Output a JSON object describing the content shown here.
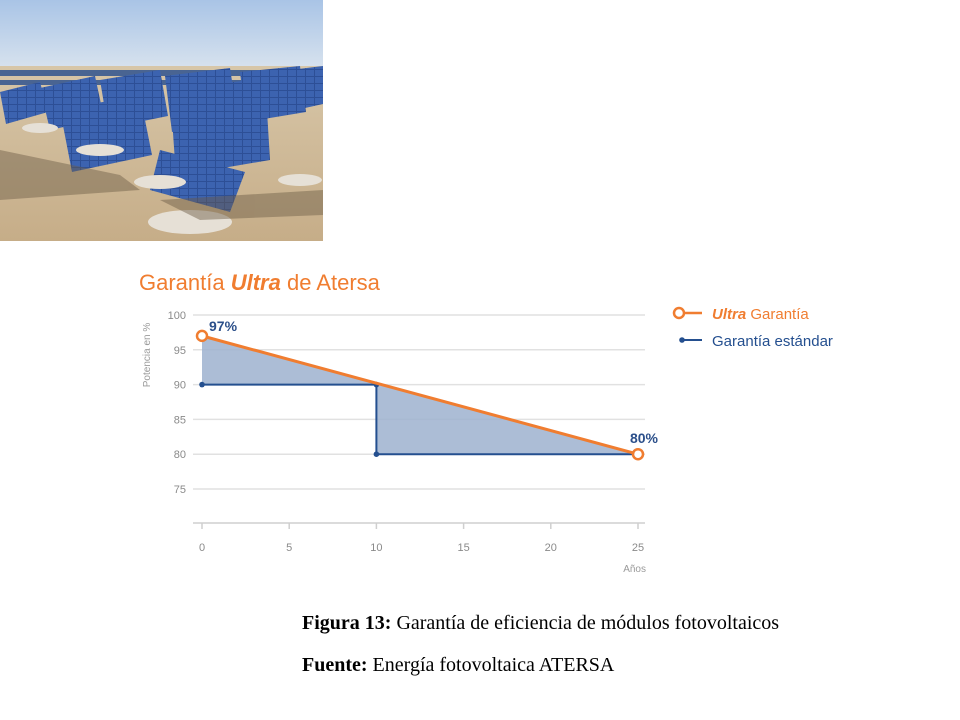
{
  "photo": {
    "subject": "solar-panel-field-photo"
  },
  "chart_data": {
    "type": "area",
    "title_parts": [
      "Garantía ",
      "Ultra",
      " de Atersa"
    ],
    "xlabel": "Años",
    "ylabel": "Potencia en %",
    "xlim": [
      0,
      25
    ],
    "ylim": [
      70,
      100
    ],
    "xticks": [
      0,
      5,
      10,
      15,
      20,
      25
    ],
    "yticks": [
      75,
      80,
      85,
      90,
      95,
      100
    ],
    "grid": true,
    "legend_placement": "top-right",
    "series": [
      {
        "name_parts": [
          "Ultra",
          " Garantía"
        ],
        "color": "#f07d30",
        "x": [
          0,
          25
        ],
        "y": [
          97,
          80
        ]
      },
      {
        "name": "Garantía estándar",
        "color": "#244f8f",
        "x": [
          0,
          10,
          10,
          25
        ],
        "y": [
          90,
          90,
          80,
          80
        ]
      }
    ],
    "annotations": [
      {
        "text": "97%",
        "x": 0,
        "y": 97
      },
      {
        "text": "80%",
        "x": 25,
        "y": 80
      }
    ],
    "fill_color": "#9db2cf"
  },
  "caption": {
    "figure_label": "Figura 13:",
    "figure_text": " Garantía de eficiencia de módulos fotovoltaicos",
    "source_label": "Fuente:",
    "source_text": " Energía fotovoltaica ATERSA"
  }
}
